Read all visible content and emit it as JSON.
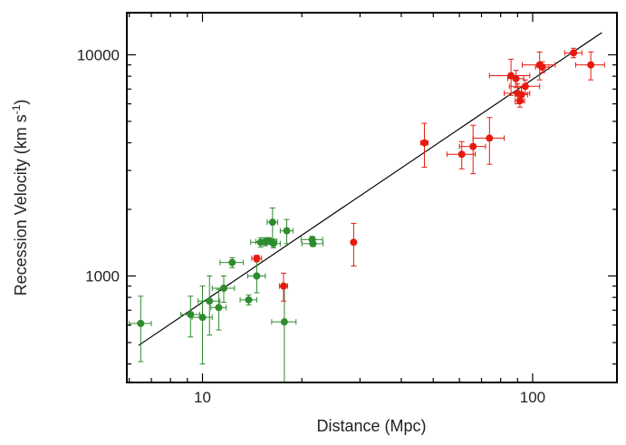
{
  "chart_data": {
    "type": "scatter",
    "title": "",
    "xlabel": "Distance (Mpc)",
    "ylabel_main": "Recession Velocity (km s",
    "ylabel_sup": "-1",
    "ylabel_close": ")",
    "xscale": "log",
    "yscale": "log",
    "xlim": [
      5.9,
      180
    ],
    "ylim": [
      330,
      15500
    ],
    "x_ticks": [
      {
        "value": 10,
        "label": "10"
      },
      {
        "value": 100,
        "label": "100"
      }
    ],
    "y_ticks": [
      {
        "value": 1000,
        "label": "1000"
      },
      {
        "value": 10000,
        "label": "10000"
      }
    ],
    "grid": false,
    "legend": "none",
    "fit_line": {
      "x": [
        6.4,
        162
      ],
      "y": [
        485,
        12600
      ],
      "color": "#000000"
    },
    "series": [
      {
        "color": "#2e8b2e",
        "points": [
          {
            "x": 6.5,
            "y": 610,
            "xerr": 0.5,
            "yerr": 200
          },
          {
            "x": 9.2,
            "y": 670,
            "xerr": 0.6,
            "yerr": 140
          },
          {
            "x": 10.0,
            "y": 650,
            "xerr": 0.7,
            "yerr": 250
          },
          {
            "x": 10.5,
            "y": 770,
            "xerr": 0.8,
            "yerr": 230
          },
          {
            "x": 11.2,
            "y": 720,
            "xerr": 0.6,
            "yerr": 150
          },
          {
            "x": 11.6,
            "y": 880,
            "xerr": 0.9,
            "yerr": 120
          },
          {
            "x": 12.3,
            "y": 1150,
            "xerr": 1.0,
            "yerr": 60
          },
          {
            "x": 13.8,
            "y": 780,
            "xerr": 0.8,
            "yerr": 40
          },
          {
            "x": 14.6,
            "y": 1000,
            "xerr": 0.9,
            "yerr": 160
          },
          {
            "x": 15.0,
            "y": 1420,
            "xerr": 1.0,
            "yerr": 70
          },
          {
            "x": 15.5,
            "y": 1430,
            "xerr": 1.0,
            "yerr": 60
          },
          {
            "x": 15.9,
            "y": 1440,
            "xerr": 0.9,
            "yerr": 50
          },
          {
            "x": 16.3,
            "y": 1750,
            "xerr": 0.6,
            "yerr": 280
          },
          {
            "x": 16.4,
            "y": 1400,
            "xerr": 0.8,
            "yerr": 60
          },
          {
            "x": 17.7,
            "y": 620,
            "xerr": 1.5,
            "yerr": 300
          },
          {
            "x": 18.0,
            "y": 1600,
            "xerr": 0.8,
            "yerr": 200
          },
          {
            "x": 21.5,
            "y": 1460,
            "xerr": 1.6,
            "yerr": 50
          },
          {
            "x": 21.6,
            "y": 1400,
            "xerr": 1.6,
            "yerr": 40
          }
        ]
      },
      {
        "color": "#e8190f",
        "points": [
          {
            "x": 14.6,
            "y": 1200,
            "xerr": 0.5,
            "yerr": 40
          },
          {
            "x": 17.6,
            "y": 900,
            "xerr": 0.5,
            "yerr": 130
          },
          {
            "x": 28.7,
            "y": 1420,
            "xerr": 0.3,
            "yerr": 310
          },
          {
            "x": 47.0,
            "y": 4000,
            "xerr": 1.2,
            "yerr": 900
          },
          {
            "x": 61.0,
            "y": 3550,
            "xerr": 6.0,
            "yerr": 500
          },
          {
            "x": 66.0,
            "y": 3850,
            "xerr": 6.0,
            "yerr": 950
          },
          {
            "x": 74.0,
            "y": 4200,
            "xerr": 8.0,
            "yerr": 1000
          },
          {
            "x": 86.0,
            "y": 8050,
            "xerr": 12.0,
            "yerr": 1500
          },
          {
            "x": 89.0,
            "y": 7800,
            "xerr": 5.0,
            "yerr": 700
          },
          {
            "x": 90.0,
            "y": 6700,
            "xerr": 8.0,
            "yerr": 700
          },
          {
            "x": 91.5,
            "y": 6200,
            "xerr": 3.0,
            "yerr": 400
          },
          {
            "x": 92.5,
            "y": 6600,
            "xerr": 4.0,
            "yerr": 500
          },
          {
            "x": 95.0,
            "y": 7200,
            "xerr": 10.0,
            "yerr": 500
          },
          {
            "x": 105.0,
            "y": 9000,
            "xerr": 12.0,
            "yerr": 1300
          },
          {
            "x": 107.0,
            "y": 8800,
            "xerr": 5.0,
            "yerr": 500
          },
          {
            "x": 133.0,
            "y": 10200,
            "xerr": 8.0,
            "yerr": 500
          },
          {
            "x": 150.0,
            "y": 9000,
            "xerr": 15.0,
            "yerr": 1300
          }
        ]
      }
    ]
  }
}
